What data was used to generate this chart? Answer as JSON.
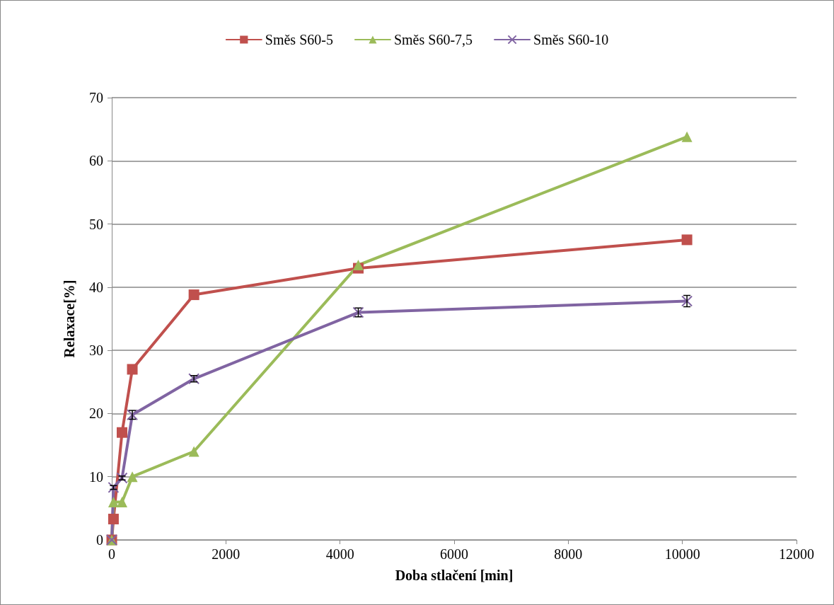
{
  "chart_data": {
    "type": "line",
    "xlabel": "Doba stlačení [min]",
    "ylabel": "Relaxace[%]",
    "x": [
      0,
      30,
      180,
      360,
      1440,
      4320,
      10080
    ],
    "series": [
      {
        "name": "Směs S60-5",
        "color": "#c0504d",
        "marker": "square",
        "values": [
          0,
          3.3,
          17,
          27,
          38.8,
          43,
          47.5
        ]
      },
      {
        "name": "Směs S60-7,5",
        "color": "#9bbb59",
        "marker": "triangle",
        "values": [
          0,
          6,
          6,
          10,
          14,
          43.5,
          63.8
        ]
      },
      {
        "name": "Směs S60-10",
        "color": "#8064a2",
        "marker": "cross",
        "values": [
          0,
          8.3,
          9.8,
          19.8,
          25.5,
          36,
          37.8
        ],
        "errors": [
          null,
          0.3,
          0.3,
          0.7,
          0.5,
          0.7,
          0.9
        ]
      }
    ],
    "xlim": [
      0,
      12000
    ],
    "xticks": [
      0,
      2000,
      4000,
      6000,
      8000,
      10000,
      12000
    ],
    "ylim": [
      0,
      70
    ],
    "yticks": [
      0,
      10,
      20,
      30,
      40,
      50,
      60,
      70
    ],
    "grid": "y",
    "legend": "top",
    "line_style": "solid"
  }
}
